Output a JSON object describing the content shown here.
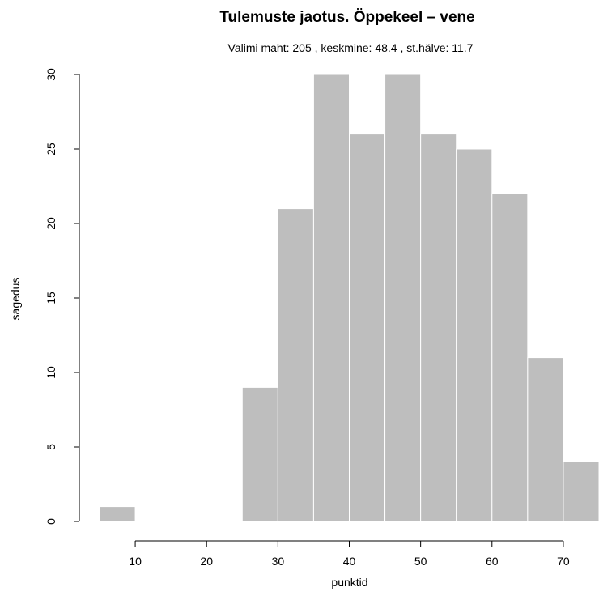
{
  "chart_data": {
    "type": "bar",
    "title": "Tulemuste jaotus. Öppekeel – vene",
    "subtitle": "Valimi maht: 205 , keskmine: 48.4 , st.hälve: 11.7",
    "xlabel": "punktid",
    "ylabel": "sagedus",
    "xlim": [
      5,
      75
    ],
    "ylim": [
      0,
      30
    ],
    "x_ticks": [
      10,
      20,
      30,
      40,
      50,
      60,
      70
    ],
    "y_ticks": [
      0,
      5,
      10,
      15,
      20,
      25,
      30
    ],
    "bins": [
      {
        "x0": 5,
        "x1": 10,
        "count": 1
      },
      {
        "x0": 10,
        "x1": 15,
        "count": 0
      },
      {
        "x0": 15,
        "x1": 20,
        "count": 0
      },
      {
        "x0": 20,
        "x1": 25,
        "count": 0
      },
      {
        "x0": 25,
        "x1": 30,
        "count": 9
      },
      {
        "x0": 30,
        "x1": 35,
        "count": 21
      },
      {
        "x0": 35,
        "x1": 40,
        "count": 30
      },
      {
        "x0": 40,
        "x1": 45,
        "count": 26
      },
      {
        "x0": 45,
        "x1": 50,
        "count": 30
      },
      {
        "x0": 50,
        "x1": 55,
        "count": 26
      },
      {
        "x0": 55,
        "x1": 60,
        "count": 25
      },
      {
        "x0": 60,
        "x1": 65,
        "count": 22
      },
      {
        "x0": 65,
        "x1": 70,
        "count": 11
      },
      {
        "x0": 70,
        "x1": 75,
        "count": 4
      }
    ],
    "bar_color": "#bebebe",
    "bar_border_color": "#ffffff",
    "grid": false
  }
}
